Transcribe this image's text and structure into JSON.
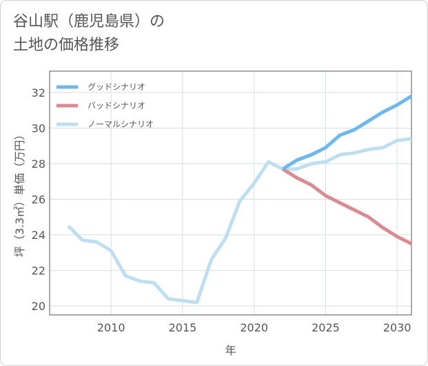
{
  "title_lines": [
    "谷山駅（鹿児島県）の",
    "土地の価格推移"
  ],
  "chart_data": {
    "type": "line",
    "xlabel": "年",
    "ylabel": "坪（3.3㎡）単価（万円）",
    "xlim": [
      2005.7,
      2031
    ],
    "ylim": [
      19.5,
      33.2
    ],
    "x_ticks": [
      2010,
      2015,
      2020,
      2025,
      2030
    ],
    "y_ticks": [
      20,
      22,
      24,
      26,
      28,
      30,
      32
    ],
    "grid": true,
    "legend_position": "top-left",
    "series": [
      {
        "name": "グッドシナリオ",
        "color": "#6bb7ee",
        "x": [
          2022,
          2023,
          2024,
          2025,
          2026,
          2027,
          2028,
          2029,
          2030,
          2031
        ],
        "y": [
          27.7,
          28.2,
          28.5,
          28.9,
          29.6,
          29.9,
          30.4,
          30.9,
          31.3,
          31.8
        ]
      },
      {
        "name": "バッドシナリオ",
        "color": "#dc8a92",
        "x": [
          2022,
          2023,
          2024,
          2025,
          2026,
          2027,
          2028,
          2029,
          2030,
          2031
        ],
        "y": [
          27.7,
          27.2,
          26.8,
          26.2,
          25.8,
          25.4,
          25.0,
          24.4,
          23.9,
          23.5
        ]
      },
      {
        "name": "ノーマルシナリオ",
        "color": "#bddff0",
        "x": [
          2007,
          2008,
          2009,
          2010,
          2011,
          2012,
          2013,
          2014,
          2015,
          2016,
          2017,
          2018,
          2019,
          2020,
          2021,
          2022,
          2023,
          2024,
          2025,
          2026,
          2027,
          2028,
          2029,
          2030,
          2031
        ],
        "y": [
          24.5,
          23.7,
          23.6,
          23.1,
          21.7,
          21.4,
          21.3,
          20.4,
          20.3,
          20.2,
          22.6,
          23.8,
          25.9,
          26.9,
          28.1,
          27.7,
          27.7,
          28.0,
          28.1,
          28.5,
          28.6,
          28.8,
          28.9,
          29.3,
          29.4
        ]
      }
    ]
  }
}
